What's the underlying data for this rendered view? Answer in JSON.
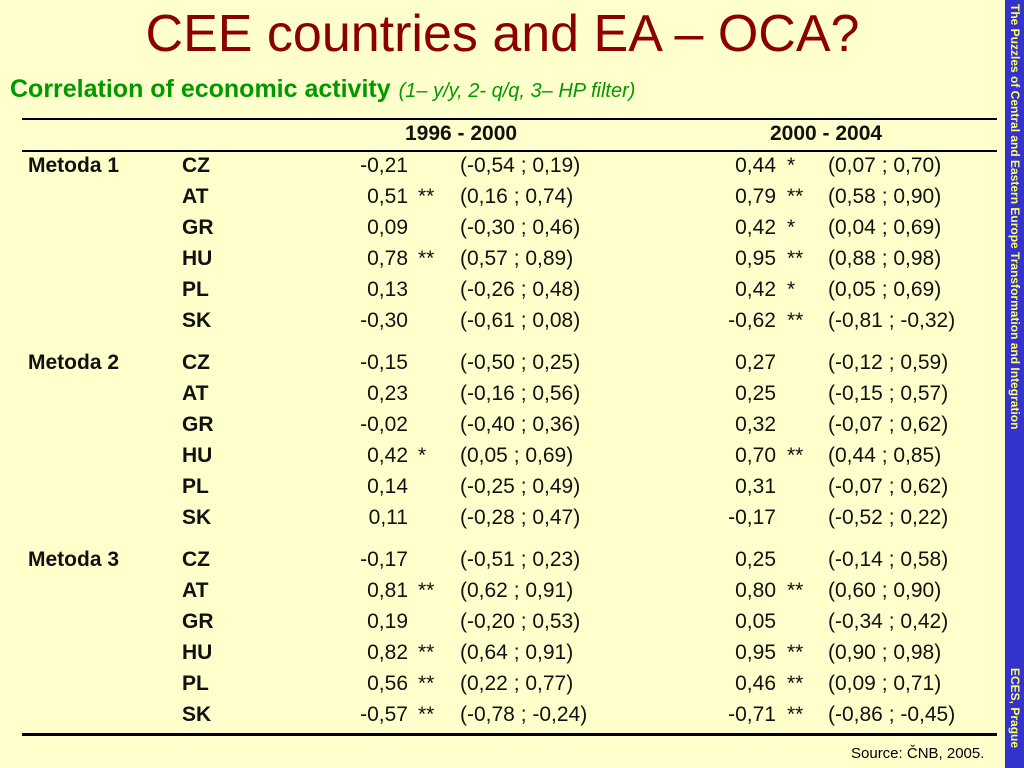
{
  "title": "CEE countries and EA – OCA?",
  "subtitle": {
    "main": "Correlation of economic activity",
    "note": "(1– y/y, 2- q/q, 3– HP filter)"
  },
  "side_banner": {
    "top": "The Puzzles of Central and Eastern Europe Transformation and Integration",
    "bottom": "ECES, Prague"
  },
  "table": {
    "periods": [
      "1996 - 2000",
      "2000 - 2004"
    ],
    "groups": [
      {
        "method": "Metoda 1",
        "rows": [
          {
            "country": "CZ",
            "v1": "-0,21",
            "s1": "",
            "c1": "(-0,54 ; 0,19)",
            "v2": "0,44",
            "s2": "*",
            "c2": "(0,07 ; 0,70)"
          },
          {
            "country": "AT",
            "v1": "0,51",
            "s1": "**",
            "c1": "(0,16 ; 0,74)",
            "v2": "0,79",
            "s2": "**",
            "c2": "(0,58 ; 0,90)"
          },
          {
            "country": "GR",
            "v1": "0,09",
            "s1": "",
            "c1": "(-0,30 ; 0,46)",
            "v2": "0,42",
            "s2": "*",
            "c2": "(0,04 ; 0,69)"
          },
          {
            "country": "HU",
            "v1": "0,78",
            "s1": "**",
            "c1": "(0,57 ; 0,89)",
            "v2": "0,95",
            "s2": "**",
            "c2": "(0,88 ; 0,98)"
          },
          {
            "country": "PL",
            "v1": "0,13",
            "s1": "",
            "c1": "(-0,26 ; 0,48)",
            "v2": "0,42",
            "s2": "*",
            "c2": "(0,05 ; 0,69)"
          },
          {
            "country": "SK",
            "v1": "-0,30",
            "s1": "",
            "c1": "(-0,61 ; 0,08)",
            "v2": "-0,62",
            "s2": "**",
            "c2": "(-0,81 ; -0,32)"
          }
        ]
      },
      {
        "method": "Metoda 2",
        "rows": [
          {
            "country": "CZ",
            "v1": "-0,15",
            "s1": "",
            "c1": "(-0,50 ; 0,25)",
            "v2": "0,27",
            "s2": "",
            "c2": "(-0,12 ; 0,59)"
          },
          {
            "country": "AT",
            "v1": "0,23",
            "s1": "",
            "c1": "(-0,16 ; 0,56)",
            "v2": "0,25",
            "s2": "",
            "c2": "(-0,15 ; 0,57)"
          },
          {
            "country": "GR",
            "v1": "-0,02",
            "s1": "",
            "c1": "(-0,40 ; 0,36)",
            "v2": "0,32",
            "s2": "",
            "c2": "(-0,07 ; 0,62)"
          },
          {
            "country": "HU",
            "v1": "0,42",
            "s1": "*",
            "c1": "(0,05 ; 0,69)",
            "v2": "0,70",
            "s2": "**",
            "c2": "(0,44 ; 0,85)"
          },
          {
            "country": "PL",
            "v1": "0,14",
            "s1": "",
            "c1": "(-0,25 ; 0,49)",
            "v2": "0,31",
            "s2": "",
            "c2": "(-0,07 ; 0,62)"
          },
          {
            "country": "SK",
            "v1": "0,11",
            "s1": "",
            "c1": "(-0,28 ; 0,47)",
            "v2": "-0,17",
            "s2": "",
            "c2": "(-0,52 ; 0,22)"
          }
        ]
      },
      {
        "method": "Metoda 3",
        "rows": [
          {
            "country": "CZ",
            "v1": "-0,17",
            "s1": "",
            "c1": "(-0,51 ; 0,23)",
            "v2": "0,25",
            "s2": "",
            "c2": "(-0,14 ; 0,58)"
          },
          {
            "country": "AT",
            "v1": "0,81",
            "s1": "**",
            "c1": "(0,62 ; 0,91)",
            "v2": "0,80",
            "s2": "**",
            "c2": "(0,60 ; 0,90)"
          },
          {
            "country": "GR",
            "v1": "0,19",
            "s1": "",
            "c1": "(-0,20 ; 0,53)",
            "v2": "0,05",
            "s2": "",
            "c2": "(-0,34 ; 0,42)"
          },
          {
            "country": "HU",
            "v1": "0,82",
            "s1": "**",
            "c1": "(0,64 ; 0,91)",
            "v2": "0,95",
            "s2": "**",
            "c2": "(0,90 ; 0,98)"
          },
          {
            "country": "PL",
            "v1": "0,56",
            "s1": "**",
            "c1": "(0,22 ; 0,77)",
            "v2": "0,46",
            "s2": "**",
            "c2": "(0,09 ; 0,71)"
          },
          {
            "country": "SK",
            "v1": "-0,57",
            "s1": "**",
            "c1": "(-0,78 ; -0,24)",
            "v2": "-0,71",
            "s2": "**",
            "c2": "(-0,86 ; -0,45)"
          }
        ]
      }
    ]
  },
  "source": "Source: ČNB, 2005."
}
